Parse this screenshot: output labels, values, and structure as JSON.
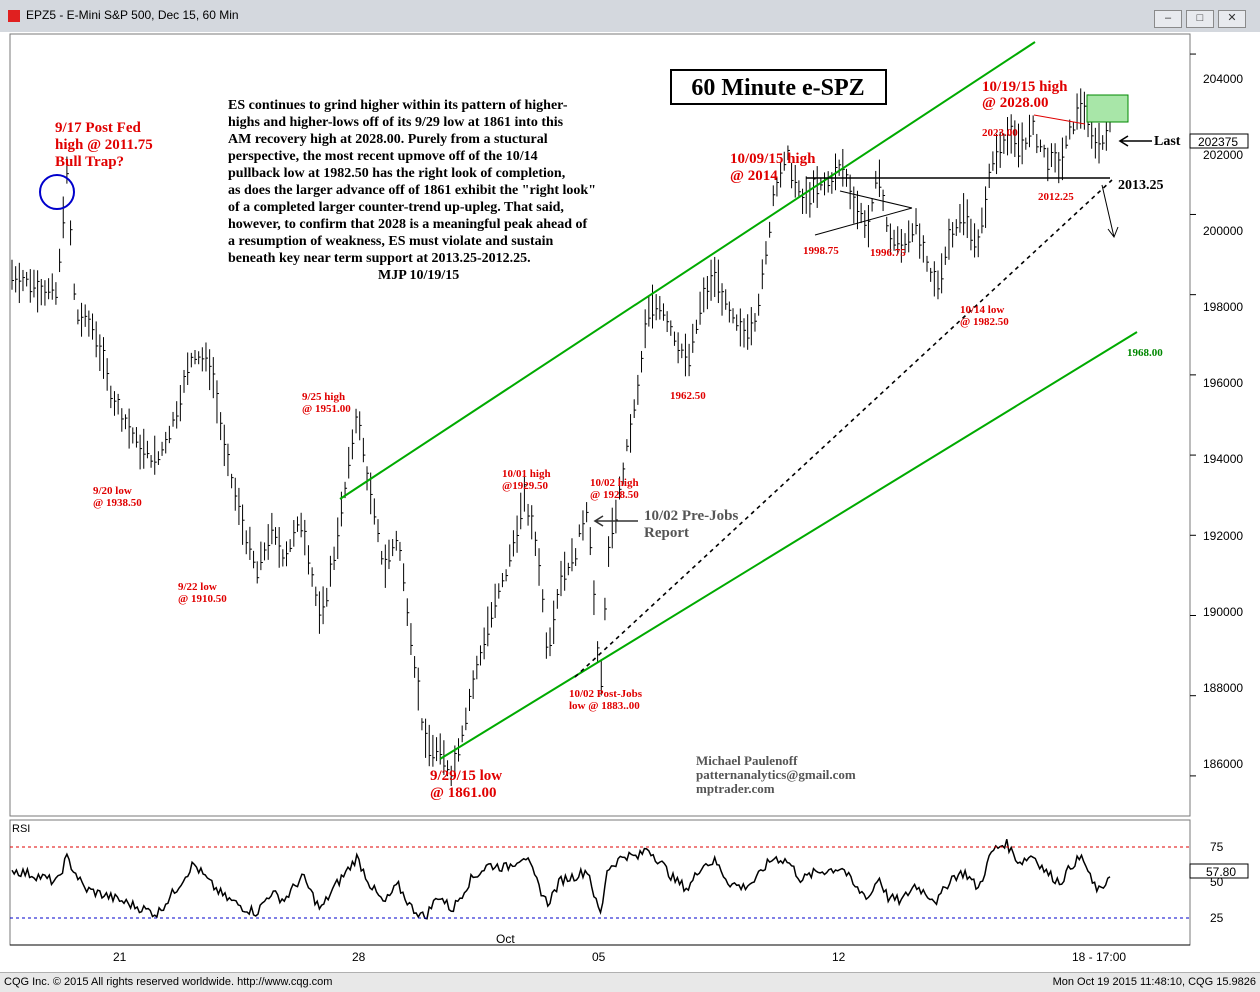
{
  "window": {
    "title": "EPZ5 - E-Mini S&P 500, Dec 15, 60 Min",
    "btn_min": "–",
    "btn_restore": "□",
    "btn_close": "✕"
  },
  "status": {
    "left": "CQG Inc. © 2015 All rights reserved worldwide. http://www.cqg.com",
    "right": "Mon Oct 19 2015 11:48:10, CQG 15.9826"
  },
  "chart_data": {
    "type": "bar",
    "title": "60 Minute e-SPZ",
    "ylim": [
      1850,
      2045
    ],
    "yticks": [
      "204000",
      "202000",
      "200000",
      "198000",
      "196000",
      "194000",
      "192000",
      "190000",
      "188000",
      "186000"
    ],
    "ytick_values": [
      2040,
      2020,
      2000,
      1980,
      1960,
      1940,
      1920,
      1900,
      1880,
      1860
    ],
    "xticks": [
      "21",
      "28",
      "05",
      "12",
      "18 - 17:00"
    ],
    "x_month_label": "Oct",
    "last_price_label": "202375",
    "last_label": "Last",
    "support_label": "2013.25",
    "lower_channel_label": "1968.00",
    "commentary": [
      "ES continues to grind higher within its pattern of higher-",
      "highs and higher-lows off of its 9/29 low at 1861 into this",
      "AM recovery high at 2028.00. Purely from a stuctural",
      "perspective, the most recent upmove off of the 10/14",
      "pullback low at 1982.50 has the right look of completion,",
      "as does the larger advance off of 1861 exhibit the \"right look\"",
      "of a completed larger counter-trend up-upleg. That said,",
      "however, to confirm that 2028 is a meaningful peak ahead of",
      "a resumption of weakness, ES must violate and sustain",
      "beneath key near term support at 2013.25-2012.25.",
      "MJP 10/19/15"
    ],
    "annotations": {
      "fed_1": "9/17 Post Fed",
      "fed_2": "high @ 2011.75",
      "fed_3": "Bull Trap?",
      "a920_1": "9/20 low",
      "a920_2": "@ 1938.50",
      "a922_1": "9/22 low",
      "a922_2": "@ 1910.50",
      "a925_1": "9/25 high",
      "a925_2": "@ 1951.00",
      "a929_1": "9/29/15 low",
      "a929_2": "@ 1861.00",
      "a1001_1": "10/01 high",
      "a1001_2": "@1929.50",
      "a1002h_1": "10/02 high",
      "a1002h_2": "@ 1928.50",
      "a1002p_1": "10/02 Post-Jobs",
      "a1002p_2": "low @ 1883..00",
      "prejobs_1": "10/02 Pre-Jobs",
      "prejobs_2": "Report",
      "a1962": "1962.50",
      "a1009_1": "10/09/15 high",
      "a1009_2": "@ 2014",
      "a1998": "1998.75",
      "a1996": "1996.75",
      "a1014_1": "10/14 low",
      "a1014_2": "@ 1982.50",
      "a1019_1": "10/19/15 high",
      "a1019_2": "@ 2028.00",
      "a2023": "2023.00",
      "a2012": "2012.25",
      "sig_1": "Michael Paulenoff",
      "sig_2": "patternanalytics@gmail.com",
      "sig_3": "mptrader.com"
    },
    "price_path": [
      [
        0,
        1985
      ],
      [
        6,
        1982
      ],
      [
        10,
        1980
      ],
      [
        12,
        2011.75
      ],
      [
        14,
        1975
      ],
      [
        18,
        1972
      ],
      [
        22,
        1955
      ],
      [
        28,
        1942
      ],
      [
        32,
        1938.5
      ],
      [
        36,
        1950
      ],
      [
        40,
        1966
      ],
      [
        44,
        1962
      ],
      [
        47,
        1940
      ],
      [
        51,
        1922
      ],
      [
        54,
        1910.5
      ],
      [
        57,
        1921
      ],
      [
        60,
        1915
      ],
      [
        64,
        1924
      ],
      [
        68,
        1898
      ],
      [
        71,
        1915
      ],
      [
        74,
        1935
      ],
      [
        76,
        1951
      ],
      [
        79,
        1930
      ],
      [
        82,
        1912
      ],
      [
        85,
        1920
      ],
      [
        88,
        1895
      ],
      [
        91,
        1868
      ],
      [
        94,
        1866
      ],
      [
        97,
        1861
      ],
      [
        101,
        1880
      ],
      [
        105,
        1898
      ],
      [
        109,
        1911
      ],
      [
        113,
        1929.5
      ],
      [
        116,
        1915
      ],
      [
        118,
        1891
      ],
      [
        121,
        1910
      ],
      [
        124,
        1915
      ],
      [
        127,
        1928.5
      ],
      [
        129,
        1890
      ],
      [
        130,
        1883
      ],
      [
        131,
        1912
      ],
      [
        135,
        1938
      ],
      [
        138,
        1956
      ],
      [
        140,
        1975
      ],
      [
        143,
        1978
      ],
      [
        146,
        1970
      ],
      [
        149,
        1962.5
      ],
      [
        152,
        1978
      ],
      [
        155,
        1985
      ],
      [
        158,
        1975
      ],
      [
        161,
        1970
      ],
      [
        164,
        1975
      ],
      [
        166,
        1988
      ],
      [
        168,
        2007
      ],
      [
        171,
        2014
      ],
      [
        174,
        2003
      ],
      [
        177,
        2006
      ],
      [
        180,
        2008
      ],
      [
        183,
        2012
      ],
      [
        186,
        2002
      ],
      [
        189,
        1996.75
      ],
      [
        191,
        2012
      ],
      [
        193,
        1995
      ],
      [
        196,
        1992
      ],
      [
        199,
        1998
      ],
      [
        202,
        1985
      ],
      [
        204,
        1982.5
      ],
      [
        207,
        1996
      ],
      [
        210,
        2000
      ],
      [
        213,
        1992
      ],
      [
        216,
        2013
      ],
      [
        219,
        2020
      ],
      [
        222,
        2017
      ],
      [
        225,
        2021
      ],
      [
        228,
        2014
      ],
      [
        231,
        2012.25
      ],
      [
        234,
        2023
      ],
      [
        236,
        2028
      ],
      [
        238,
        2020
      ],
      [
        240,
        2017
      ],
      [
        242,
        2024
      ]
    ],
    "rsi": {
      "label": "RSI",
      "levels": [
        "75",
        "50",
        "25"
      ],
      "level_values": [
        75,
        50,
        25
      ],
      "last_value_label": "57.80",
      "last_value": 57.8,
      "path": [
        [
          0,
          60
        ],
        [
          6,
          55
        ],
        [
          10,
          50
        ],
        [
          12,
          70
        ],
        [
          16,
          45
        ],
        [
          22,
          38
        ],
        [
          28,
          30
        ],
        [
          32,
          25
        ],
        [
          36,
          44
        ],
        [
          40,
          65
        ],
        [
          44,
          48
        ],
        [
          47,
          38
        ],
        [
          51,
          30
        ],
        [
          54,
          26
        ],
        [
          57,
          42
        ],
        [
          60,
          36
        ],
        [
          64,
          55
        ],
        [
          68,
          28
        ],
        [
          71,
          46
        ],
        [
          74,
          60
        ],
        [
          76,
          70
        ],
        [
          79,
          48
        ],
        [
          82,
          33
        ],
        [
          85,
          48
        ],
        [
          88,
          30
        ],
        [
          91,
          22
        ],
        [
          94,
          40
        ],
        [
          97,
          28
        ],
        [
          101,
          52
        ],
        [
          105,
          64
        ],
        [
          109,
          62
        ],
        [
          113,
          72
        ],
        [
          116,
          48
        ],
        [
          118,
          33
        ],
        [
          121,
          52
        ],
        [
          124,
          55
        ],
        [
          127,
          60
        ],
        [
          129,
          30
        ],
        [
          130,
          25
        ],
        [
          131,
          60
        ],
        [
          135,
          72
        ],
        [
          138,
          70
        ],
        [
          140,
          78
        ],
        [
          143,
          66
        ],
        [
          146,
          52
        ],
        [
          149,
          45
        ],
        [
          152,
          64
        ],
        [
          155,
          67
        ],
        [
          158,
          50
        ],
        [
          161,
          46
        ],
        [
          164,
          52
        ],
        [
          166,
          63
        ],
        [
          168,
          70
        ],
        [
          171,
          67
        ],
        [
          174,
          52
        ],
        [
          177,
          58
        ],
        [
          180,
          60
        ],
        [
          183,
          62
        ],
        [
          186,
          45
        ],
        [
          189,
          38
        ],
        [
          191,
          55
        ],
        [
          193,
          38
        ],
        [
          196,
          35
        ],
        [
          199,
          48
        ],
        [
          202,
          40
        ],
        [
          204,
          35
        ],
        [
          207,
          54
        ],
        [
          210,
          58
        ],
        [
          213,
          45
        ],
        [
          216,
          75
        ],
        [
          219,
          82
        ],
        [
          222,
          66
        ],
        [
          225,
          72
        ],
        [
          228,
          58
        ],
        [
          231,
          50
        ],
        [
          234,
          66
        ],
        [
          236,
          70
        ],
        [
          238,
          50
        ],
        [
          240,
          42
        ],
        [
          242,
          58
        ]
      ]
    },
    "colors": {
      "price_bars": "#000000",
      "channel": "#00aa00",
      "annotation_red": "#e00000",
      "annotation_green": "#008800",
      "circle": "#0000cc",
      "target_box": "#88dd88",
      "rsi_upper": "#e00000",
      "rsi_lower": "#0000cc"
    }
  }
}
